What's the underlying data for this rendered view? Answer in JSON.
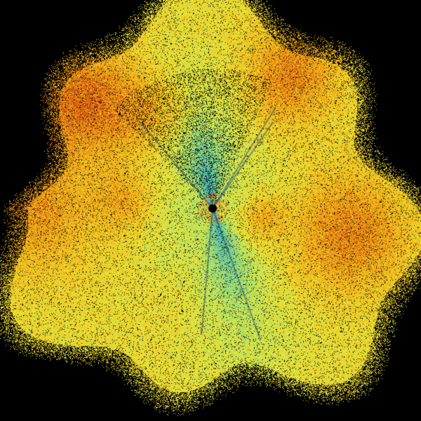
{
  "image": {
    "type": "radar-ppi-scan",
    "background": "#000000",
    "colormap": [
      "#1a5fa8",
      "#2e9bc0",
      "#5cc7a0",
      "#a8dc6a",
      "#e8ec3c",
      "#f2c21c",
      "#e88a10",
      "#c83a10",
      "#000000"
    ],
    "features": [
      "radial-spokes",
      "noisy-echo-field",
      "stronger-echo-bands-orange"
    ]
  }
}
